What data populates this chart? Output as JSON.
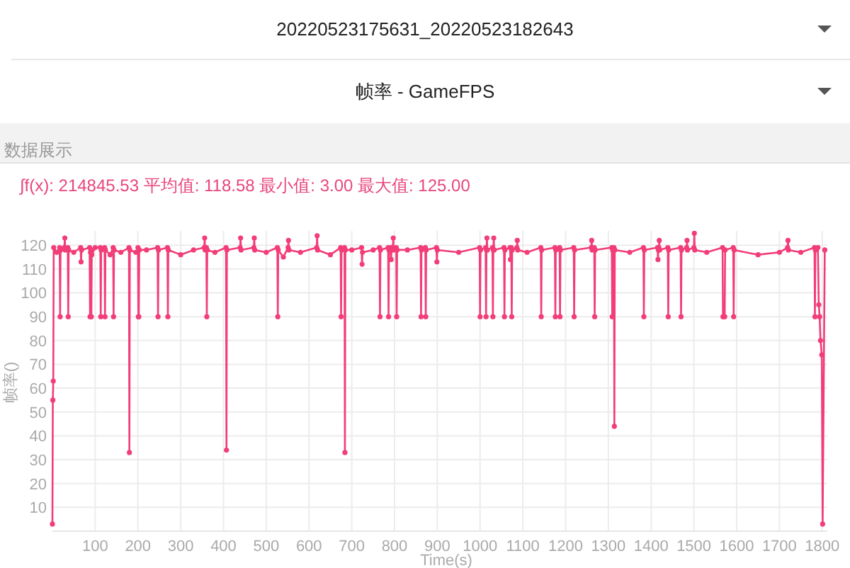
{
  "chart_data": {
    "type": "line",
    "title": "帧率 - GameFPS",
    "subtitle": "∫f(x): 214845.53 平均值: 118.58 最小值: 3.00 最大值: 125.00",
    "annotations": [
      "20220523175631_20220523182643",
      "数据展示"
    ],
    "xlabel": "Time(s)",
    "ylabel": "帧率()",
    "xlim": [
      0,
      1812
    ],
    "xticks": [
      100,
      200,
      300,
      400,
      500,
      600,
      700,
      800,
      900,
      1000,
      1100,
      1200,
      1300,
      1400,
      1500,
      1600,
      1700,
      1800
    ],
    "ylim": [
      0,
      126
    ],
    "yticks": [
      10,
      20,
      30,
      40,
      50,
      60,
      70,
      80,
      90,
      100,
      110,
      120
    ],
    "grid": true,
    "marker": "circle",
    "line_style": "solid",
    "series": [
      {
        "color": "#f23d78",
        "x": [
          0,
          1,
          2,
          3,
          10,
          17,
          18,
          19,
          28,
          29,
          30,
          36,
          37,
          38,
          50,
          66,
          67,
          68,
          87,
          88,
          89,
          90,
          91,
          92,
          100,
          112,
          113,
          114,
          122,
          123,
          124,
          135,
          142,
          143,
          144,
          160,
          179,
          180,
          181,
          195,
          200,
          201,
          202,
          203,
          220,
          246,
          247,
          248,
          269,
          270,
          271,
          300,
          330,
          355,
          356,
          357,
          360,
          361,
          362,
          380,
          406,
          407,
          408,
          439,
          440,
          441,
          471,
          472,
          473,
          500,
          526,
          527,
          528,
          540,
          551,
          552,
          553,
          580,
          618,
          619,
          620,
          650,
          674,
          675,
          676,
          683,
          684,
          685,
          700,
          723,
          724,
          725,
          750,
          765,
          766,
          767,
          785,
          786,
          787,
          791,
          792,
          793,
          796,
          797,
          798,
          804,
          805,
          806,
          830,
          861,
          862,
          863,
          872,
          873,
          874,
          898,
          899,
          900,
          950,
          999,
          1000,
          1001,
          1013,
          1014,
          1015,
          1016,
          1017,
          1029,
          1030,
          1031,
          1032,
          1033,
          1056,
          1057,
          1058,
          1070,
          1071,
          1073,
          1074,
          1075,
          1086,
          1087,
          1088,
          1110,
          1142,
          1143,
          1144,
          1175,
          1176,
          1177,
          1186,
          1187,
          1188,
          1219,
          1220,
          1221,
          1260,
          1261,
          1262,
          1267,
          1268,
          1269,
          1308,
          1309,
          1310,
          1313,
          1314,
          1315,
          1350,
          1382,
          1383,
          1384,
          1415,
          1416,
          1417,
          1418,
          1419,
          1420,
          1439,
          1440,
          1441,
          1469,
          1470,
          1471,
          1483,
          1484,
          1485,
          1500,
          1501,
          1502,
          1530,
          1567,
          1568,
          1572,
          1573,
          1592,
          1593,
          1594,
          1650,
          1700,
          1719,
          1720,
          1721,
          1750,
          1782,
          1783,
          1784,
          1790,
          1792,
          1794,
          1796,
          1799,
          1801,
          1806
        ],
        "values": [
          3,
          55,
          63,
          119,
          117,
          119,
          90,
          118,
          119,
          123,
          118,
          119,
          90,
          118,
          117,
          119,
          113,
          118,
          119,
          90,
          117,
          118,
          90,
          116,
          119,
          119,
          90,
          118,
          119,
          90,
          118,
          116,
          119,
          90,
          118,
          117,
          119,
          33,
          118,
          117,
          119,
          90,
          90,
          118,
          118,
          119,
          90,
          118,
          119,
          90,
          118,
          116,
          118,
          119,
          123,
          118,
          119,
          90,
          118,
          117,
          119,
          34,
          118,
          119,
          123,
          118,
          119,
          123,
          118,
          117,
          119,
          90,
          118,
          115,
          119,
          122,
          118,
          117,
          119,
          124,
          118,
          116,
          119,
          90,
          118,
          119,
          33,
          118,
          118,
          119,
          112,
          117,
          118,
          119,
          90,
          118,
          119,
          90,
          118,
          119,
          114,
          118,
          119,
          123,
          118,
          119,
          90,
          118,
          118,
          119,
          90,
          118,
          119,
          90,
          118,
          119,
          113,
          118,
          117,
          119,
          90,
          118,
          119,
          90,
          118,
          123,
          118,
          119,
          90,
          118,
          123,
          118,
          119,
          90,
          118,
          119,
          114,
          119,
          90,
          118,
          119,
          122,
          118,
          117,
          119,
          90,
          118,
          119,
          90,
          118,
          119,
          90,
          118,
          119,
          90,
          118,
          119,
          122,
          118,
          119,
          90,
          118,
          119,
          90,
          118,
          119,
          44,
          118,
          117,
          119,
          90,
          118,
          119,
          114,
          118,
          119,
          122,
          118,
          119,
          90,
          118,
          119,
          90,
          118,
          119,
          122,
          118,
          119,
          125,
          118,
          117,
          119,
          90,
          90,
          118,
          119,
          90,
          118,
          116,
          117,
          119,
          122,
          118,
          117,
          119,
          90,
          118,
          119,
          95,
          90,
          80,
          74,
          3,
          118
        ]
      }
    ]
  }
}
